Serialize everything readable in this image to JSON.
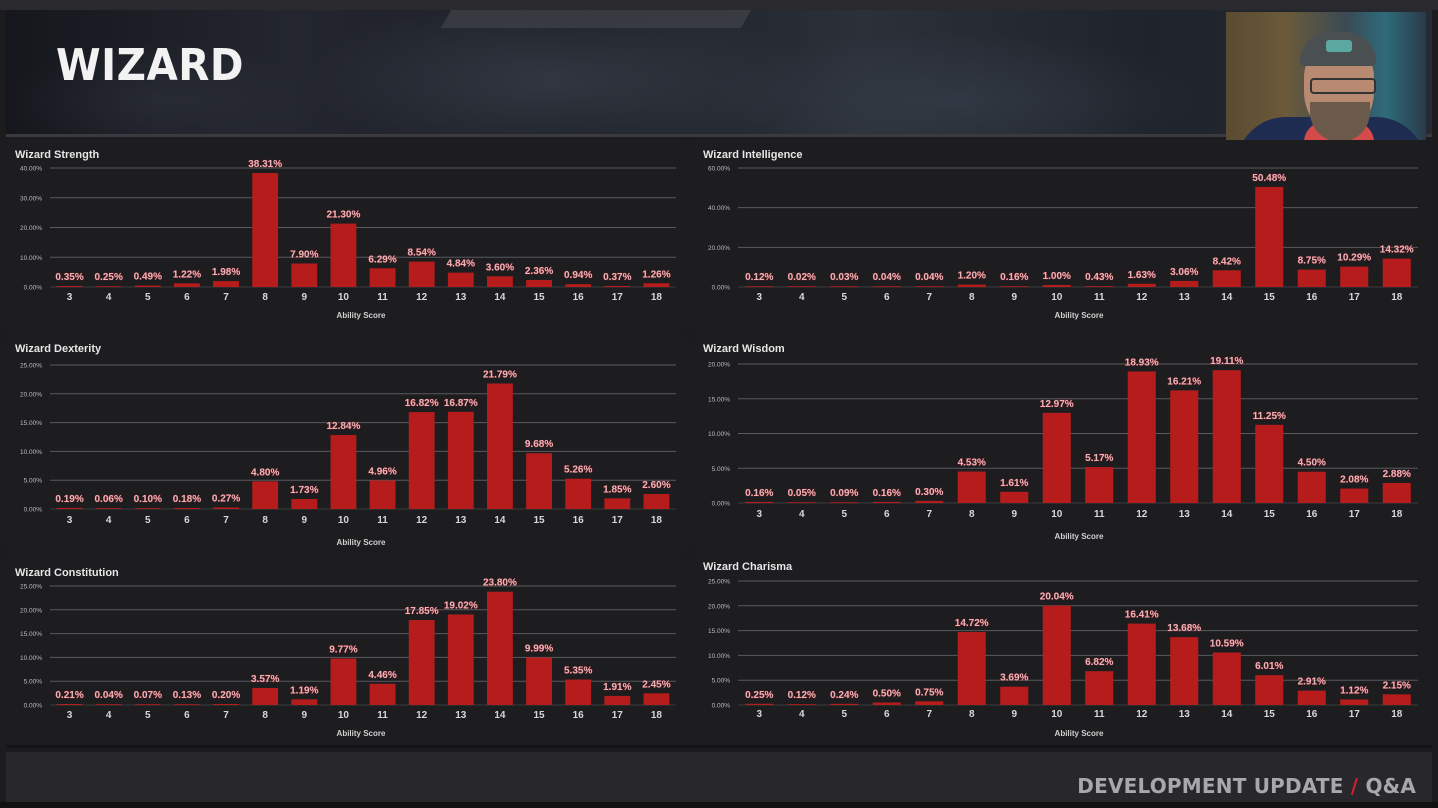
{
  "header": {
    "title": "WIZARD"
  },
  "footer": {
    "text_main": "DEVELOPMENT UPDATE ",
    "slash": "/",
    "text_end": " Q&A"
  },
  "webcam": {
    "label": "streamer-webcam"
  },
  "colors": {
    "bar": "#b71c1c",
    "label": "#e8b4b8",
    "grid": "#5a5a5e",
    "background": "#1d1d20"
  },
  "chart_data": [
    {
      "id": "strength",
      "type": "bar",
      "title": "Wizard Strength",
      "xlabel": "Ability Score",
      "ylabel": "",
      "categories": [
        "3",
        "4",
        "5",
        "6",
        "7",
        "8",
        "9",
        "10",
        "11",
        "12",
        "13",
        "14",
        "15",
        "16",
        "17",
        "18"
      ],
      "values": [
        0.35,
        0.25,
        0.49,
        1.22,
        1.98,
        38.31,
        7.9,
        21.3,
        6.29,
        8.54,
        4.84,
        3.6,
        2.36,
        0.94,
        0.37,
        1.26
      ],
      "labels": [
        "0.35%",
        "0.25%",
        "0.49%",
        "1.22%",
        "1.98%",
        "38.31%",
        "7.90%",
        "21.30%",
        "6.29%",
        "8.54%",
        "4.84%",
        "3.60%",
        "2.36%",
        "0.94%",
        "0.37%",
        "1.26%"
      ],
      "yticks": [
        "0.00%",
        "10.00%",
        "20.00%",
        "30.00%",
        "40.00%"
      ],
      "ylim": [
        0,
        40
      ],
      "grid": true
    },
    {
      "id": "intelligence",
      "type": "bar",
      "title": "Wizard Intelligence",
      "xlabel": "Ability Score",
      "ylabel": "",
      "categories": [
        "3",
        "4",
        "5",
        "6",
        "7",
        "8",
        "9",
        "10",
        "11",
        "12",
        "13",
        "14",
        "15",
        "16",
        "17",
        "18"
      ],
      "values": [
        0.12,
        0.02,
        0.03,
        0.04,
        0.04,
        1.2,
        0.16,
        1.0,
        0.43,
        1.63,
        3.06,
        8.42,
        50.48,
        8.75,
        10.29,
        14.32
      ],
      "labels": [
        "0.12%",
        "0.02%",
        "0.03%",
        "0.04%",
        "0.04%",
        "1.20%",
        "0.16%",
        "1.00%",
        "0.43%",
        "1.63%",
        "3.06%",
        "8.42%",
        "50.48%",
        "8.75%",
        "10.29%",
        "14.32%"
      ],
      "yticks": [
        "0.00%",
        "20.00%",
        "40.00%",
        "60.00%"
      ],
      "ylim": [
        0,
        60
      ],
      "grid": true
    },
    {
      "id": "dexterity",
      "type": "bar",
      "title": "Wizard Dexterity",
      "xlabel": "Ability Score",
      "ylabel": "",
      "categories": [
        "3",
        "4",
        "5",
        "6",
        "7",
        "8",
        "9",
        "10",
        "11",
        "12",
        "13",
        "14",
        "15",
        "16",
        "17",
        "18"
      ],
      "values": [
        0.19,
        0.06,
        0.1,
        0.18,
        0.27,
        4.8,
        1.73,
        12.84,
        4.96,
        16.82,
        16.87,
        21.79,
        9.68,
        5.26,
        1.85,
        2.6
      ],
      "labels": [
        "0.19%",
        "0.06%",
        "0.10%",
        "0.18%",
        "0.27%",
        "4.80%",
        "1.73%",
        "12.84%",
        "4.96%",
        "16.82%",
        "16.87%",
        "21.79%",
        "9.68%",
        "5.26%",
        "1.85%",
        "2.60%"
      ],
      "yticks": [
        "0.00%",
        "5.00%",
        "10.00%",
        "15.00%",
        "20.00%",
        "25.00%"
      ],
      "ylim": [
        0,
        25
      ],
      "grid": true
    },
    {
      "id": "wisdom",
      "type": "bar",
      "title": "Wizard Wisdom",
      "xlabel": "Ability Score",
      "ylabel": "",
      "categories": [
        "3",
        "4",
        "5",
        "6",
        "7",
        "8",
        "9",
        "10",
        "11",
        "12",
        "13",
        "14",
        "15",
        "16",
        "17",
        "18"
      ],
      "values": [
        0.16,
        0.05,
        0.09,
        0.16,
        0.3,
        4.53,
        1.61,
        12.97,
        5.17,
        18.93,
        16.21,
        19.11,
        11.25,
        4.5,
        2.08,
        2.88
      ],
      "labels": [
        "0.16%",
        "0.05%",
        "0.09%",
        "0.16%",
        "0.30%",
        "4.53%",
        "1.61%",
        "12.97%",
        "5.17%",
        "18.93%",
        "16.21%",
        "19.11%",
        "11.25%",
        "4.50%",
        "2.08%",
        "2.88%"
      ],
      "yticks": [
        "0.00%",
        "5.00%",
        "10.00%",
        "15.00%",
        "20.00%"
      ],
      "ylim": [
        0,
        20
      ],
      "grid": true
    },
    {
      "id": "constitution",
      "type": "bar",
      "title": "Wizard Constitution",
      "xlabel": "Ability Score",
      "ylabel": "",
      "categories": [
        "3",
        "4",
        "5",
        "6",
        "7",
        "8",
        "9",
        "10",
        "11",
        "12",
        "13",
        "14",
        "15",
        "16",
        "17",
        "18"
      ],
      "values": [
        0.21,
        0.04,
        0.07,
        0.13,
        0.2,
        3.57,
        1.19,
        9.77,
        4.46,
        17.85,
        19.02,
        23.8,
        9.99,
        5.35,
        1.91,
        2.45
      ],
      "labels": [
        "0.21%",
        "0.04%",
        "0.07%",
        "0.13%",
        "0.20%",
        "3.57%",
        "1.19%",
        "9.77%",
        "4.46%",
        "17.85%",
        "19.02%",
        "23.80%",
        "9.99%",
        "5.35%",
        "1.91%",
        "2.45%"
      ],
      "yticks": [
        "0.00%",
        "5.00%",
        "10.00%",
        "15.00%",
        "20.00%",
        "25.00%"
      ],
      "ylim": [
        0,
        25
      ],
      "grid": true
    },
    {
      "id": "charisma",
      "type": "bar",
      "title": "Wizard Charisma",
      "xlabel": "Ability Score",
      "ylabel": "",
      "categories": [
        "3",
        "4",
        "5",
        "6",
        "7",
        "8",
        "9",
        "10",
        "11",
        "12",
        "13",
        "14",
        "15",
        "16",
        "17",
        "18"
      ],
      "values": [
        0.25,
        0.12,
        0.24,
        0.5,
        0.75,
        14.72,
        3.69,
        20.04,
        6.82,
        16.41,
        13.68,
        10.59,
        6.01,
        2.91,
        1.12,
        2.15
      ],
      "labels": [
        "0.25%",
        "0.12%",
        "0.24%",
        "0.50%",
        "0.75%",
        "14.72%",
        "3.69%",
        "20.04%",
        "6.82%",
        "16.41%",
        "13.68%",
        "10.59%",
        "6.01%",
        "2.91%",
        "1.12%",
        "2.15%"
      ],
      "yticks": [
        "0.00%",
        "5.00%",
        "10.00%",
        "15.00%",
        "20.00%",
        "25.00%"
      ],
      "ylim": [
        0,
        25
      ],
      "grid": true
    }
  ]
}
